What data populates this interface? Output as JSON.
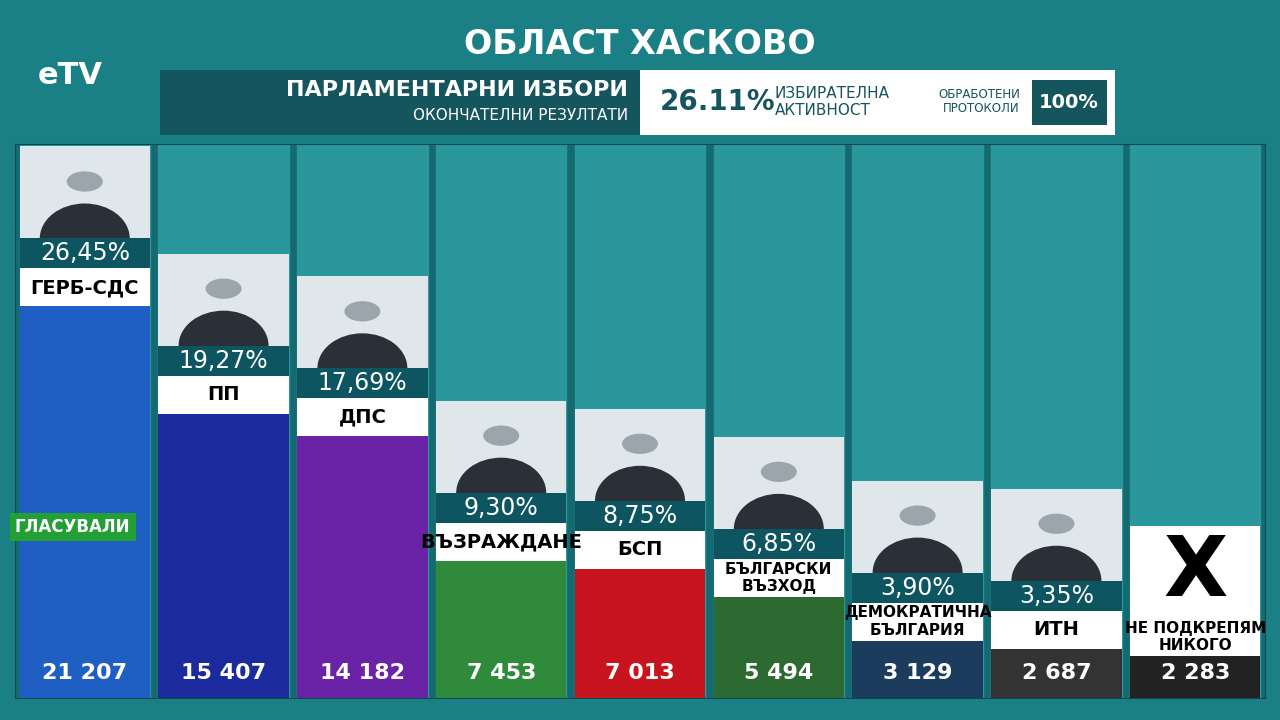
{
  "chart_data": {
    "type": "bar",
    "title": "ОБЛАСТ ХАСКОВО",
    "logo": "eTV",
    "subtitle": "ПАРЛАМЕНТАРНИ ИЗБОРИ",
    "subtitle2": "ОКОНЧАТЕЛНИ РЕЗУЛТАТИ",
    "turnout": {
      "value": 26.11,
      "label": "26.11%"
    },
    "turnout_title": "ИЗБИРАТЕЛНА\nАКТИВНОСТ",
    "protocols": {
      "value": 100,
      "label": "100%"
    },
    "protocols_title": "ОБРАБОТЕНИ\nПРОТОКОЛИ",
    "values_title": "ГЛАСУВАЛИ",
    "categories": [
      "ГЕРБ-СДС",
      "ПП",
      "ДПС",
      "ВЪЗРАЖДАНЕ",
      "БСП",
      "БЪЛГАРСКИ\nВЪЗХОД",
      "ДЕМОКРАТИЧНА\nБЪЛГАРИЯ",
      "ИТН",
      "НЕ ПОДКРЕПЯМ\nНИКОГО"
    ],
    "values": [
      21207,
      15407,
      14182,
      7453,
      7013,
      5494,
      3129,
      2687,
      2283
    ],
    "value_labels": [
      "21 207",
      "15 407",
      "14 182",
      "7 453",
      "7 013",
      "5 494",
      "3 129",
      "2 687",
      "2 283"
    ],
    "percentages": [
      26.45,
      19.27,
      17.69,
      9.3,
      8.75,
      6.85,
      3.9,
      3.35,
      null
    ],
    "percentage_labels": [
      "26,45%",
      "19,27%",
      "17,69%",
      "9,30%",
      "8,75%",
      "6,85%",
      "3,90%",
      "3,35%",
      null
    ],
    "symbols": [
      null,
      null,
      null,
      null,
      null,
      null,
      null,
      null,
      "X"
    ],
    "colors": [
      "#1f5fc4",
      "#1b2a9c",
      "#6a22a6",
      "#2f8a3c",
      "#c8141e",
      "#2d6a32",
      "#1c3c5e",
      "#333333",
      "#222222"
    ],
    "ylim": [
      0,
      30000
    ],
    "data_labels": true,
    "tick_labels": false
  }
}
